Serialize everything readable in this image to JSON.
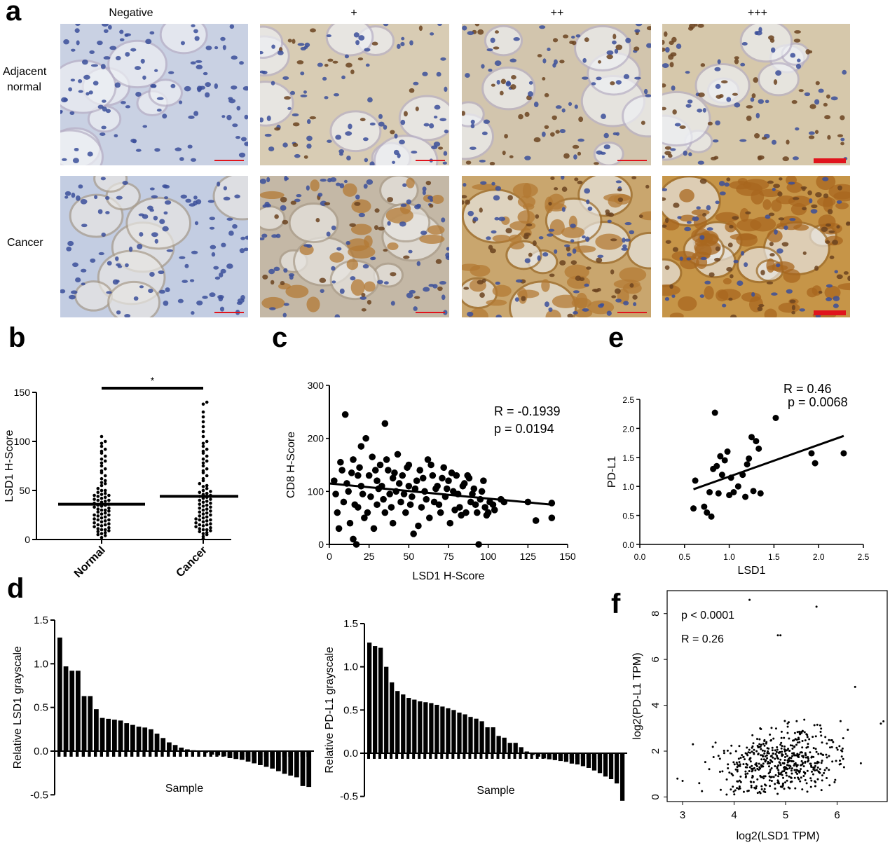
{
  "panel_a": {
    "letter": "a",
    "columns": [
      "Negative",
      "+",
      "++",
      "+++"
    ],
    "rows": [
      {
        "line1": "Adjacent",
        "line2": "normal"
      },
      {
        "line1": "Cancer",
        "line2": ""
      }
    ],
    "tile_tints": [
      [
        "#c9d1e3",
        "#d8ccb4",
        "#d2c5ad",
        "#d6c8ab"
      ],
      [
        "#c3cde2",
        "#c4b8a6",
        "#c9a66e",
        "#c69548"
      ]
    ],
    "nuclei_color": "#3b4f9a",
    "brown_nuclei_color": "#6b4320",
    "scale_bar_color": "#e0141c"
  },
  "panel_b": {
    "letter": "b",
    "ylabel": "LSD1 H-Score",
    "significance": "*"
  },
  "panel_c": {
    "letter": "c",
    "stat_R": "R = -0.1939",
    "stat_p": "p = 0.0194"
  },
  "panel_d": {
    "letter": "d"
  },
  "panel_e": {
    "letter": "e",
    "stat_R": "R = 0.46",
    "stat_p": "p = 0.0068"
  },
  "panel_f": {
    "letter": "f",
    "stat_p": "p < 0.0001",
    "stat_R": "R = 0.26"
  },
  "chart_data": [
    {
      "id": "b",
      "type": "scatter",
      "subtype": "dot-plot",
      "categories": [
        "Normal",
        "Cancer"
      ],
      "ylabel": "LSD1 H-Score",
      "ylim": [
        0,
        150
      ],
      "yticks": [
        0,
        50,
        100,
        150
      ],
      "means": [
        36,
        44
      ],
      "series": [
        {
          "name": "Normal",
          "values": [
            2,
            4,
            5,
            6,
            7,
            8,
            9,
            10,
            10,
            11,
            12,
            13,
            14,
            15,
            15,
            16,
            17,
            18,
            19,
            20,
            20,
            21,
            22,
            23,
            24,
            25,
            25,
            26,
            27,
            28,
            29,
            30,
            30,
            31,
            32,
            33,
            34,
            35,
            35,
            36,
            37,
            38,
            39,
            40,
            40,
            41,
            42,
            43,
            44,
            45,
            45,
            46,
            47,
            48,
            50,
            50,
            52,
            55,
            57,
            58,
            60,
            62,
            65,
            68,
            70,
            72,
            75,
            78,
            80,
            82,
            85,
            88,
            90,
            92,
            95,
            98,
            100,
            105
          ]
        },
        {
          "name": "Cancer",
          "values": [
            1,
            3,
            5,
            6,
            7,
            8,
            9,
            10,
            10,
            11,
            12,
            13,
            14,
            15,
            15,
            16,
            17,
            18,
            19,
            20,
            20,
            21,
            22,
            23,
            24,
            25,
            26,
            27,
            28,
            29,
            30,
            31,
            32,
            33,
            34,
            35,
            36,
            37,
            38,
            39,
            40,
            41,
            42,
            43,
            44,
            45,
            46,
            47,
            48,
            49,
            50,
            52,
            54,
            55,
            57,
            60,
            62,
            65,
            68,
            70,
            72,
            75,
            78,
            80,
            82,
            85,
            88,
            90,
            92,
            95,
            98,
            100,
            105,
            110,
            115,
            120,
            125,
            130,
            138,
            140
          ]
        }
      ],
      "significance": "*"
    },
    {
      "id": "c",
      "type": "scatter",
      "xlabel": "LSD1 H-Score",
      "ylabel": "CD8 H-Score",
      "xlim": [
        0,
        150
      ],
      "ylim": [
        0,
        300
      ],
      "xticks": [
        0,
        25,
        50,
        75,
        100,
        125,
        150
      ],
      "yticks": [
        0,
        100,
        200,
        300
      ],
      "points": [
        [
          3,
          120
        ],
        [
          5,
          60
        ],
        [
          8,
          140
        ],
        [
          9,
          80
        ],
        [
          10,
          245
        ],
        [
          12,
          100
        ],
        [
          13,
          40
        ],
        [
          15,
          160
        ],
        [
          15,
          10
        ],
        [
          17,
          0
        ],
        [
          18,
          130
        ],
        [
          18,
          70
        ],
        [
          20,
          185
        ],
        [
          20,
          110
        ],
        [
          22,
          50
        ],
        [
          23,
          200
        ],
        [
          25,
          130
        ],
        [
          26,
          90
        ],
        [
          27,
          165
        ],
        [
          28,
          30
        ],
        [
          30,
          120
        ],
        [
          30,
          75
        ],
        [
          32,
          150
        ],
        [
          33,
          110
        ],
        [
          35,
          228
        ],
        [
          35,
          60
        ],
        [
          37,
          140
        ],
        [
          38,
          95
        ],
        [
          40,
          125
        ],
        [
          40,
          40
        ],
        [
          42,
          100
        ],
        [
          43,
          170
        ],
        [
          45,
          80
        ],
        [
          46,
          130
        ],
        [
          48,
          60
        ],
        [
          50,
          110
        ],
        [
          50,
          150
        ],
        [
          52,
          90
        ],
        [
          53,
          20
        ],
        [
          55,
          120
        ],
        [
          57,
          140
        ],
        [
          58,
          70
        ],
        [
          60,
          100
        ],
        [
          62,
          160
        ],
        [
          63,
          50
        ],
        [
          65,
          130
        ],
        [
          66,
          80
        ],
        [
          68,
          110
        ],
        [
          70,
          60
        ],
        [
          72,
          145
        ],
        [
          73,
          90
        ],
        [
          75,
          120
        ],
        [
          76,
          40
        ],
        [
          78,
          100
        ],
        [
          80,
          130
        ],
        [
          82,
          70
        ],
        [
          84,
          110
        ],
        [
          86,
          60
        ],
        [
          88,
          125
        ],
        [
          90,
          95
        ],
        [
          92,
          75
        ],
        [
          94,
          0
        ],
        [
          95,
          85
        ],
        [
          98,
          70
        ],
        [
          100,
          60
        ],
        [
          103,
          75
        ],
        [
          110,
          80
        ],
        [
          125,
          80
        ],
        [
          130,
          45
        ],
        [
          140,
          78
        ],
        [
          140,
          50
        ],
        [
          4,
          95
        ],
        [
          6,
          30
        ],
        [
          7,
          155
        ],
        [
          11,
          115
        ],
        [
          14,
          135
        ],
        [
          16,
          75
        ],
        [
          19,
          145
        ],
        [
          21,
          95
        ],
        [
          24,
          60
        ],
        [
          29,
          140
        ],
        [
          31,
          105
        ],
        [
          34,
          85
        ],
        [
          36,
          160
        ],
        [
          39,
          70
        ],
        [
          41,
          135
        ],
        [
          44,
          115
        ],
        [
          47,
          95
        ],
        [
          49,
          145
        ],
        [
          51,
          75
        ],
        [
          54,
          105
        ],
        [
          56,
          35
        ],
        [
          59,
          125
        ],
        [
          61,
          85
        ],
        [
          64,
          150
        ],
        [
          67,
          105
        ],
        [
          69,
          75
        ],
        [
          71,
          125
        ],
        [
          74,
          105
        ],
        [
          77,
          135
        ],
        [
          79,
          65
        ],
        [
          81,
          95
        ],
        [
          83,
          55
        ],
        [
          85,
          115
        ],
        [
          87,
          130
        ],
        [
          89,
          80
        ],
        [
          91,
          105
        ],
        [
          93,
          60
        ],
        [
          96,
          100
        ],
        [
          97,
          120
        ],
        [
          99,
          55
        ],
        [
          101,
          80
        ],
        [
          104,
          65
        ],
        [
          108,
          85
        ]
      ],
      "fit_line": [
        [
          0,
          115
        ],
        [
          140,
          75
        ]
      ],
      "stats": [
        "R = -0.1939",
        "p = 0.0194"
      ]
    },
    {
      "id": "d1",
      "type": "bar",
      "xlabel": "Sample",
      "ylabel": "Relative  LSD1 grayscale",
      "ylim": [
        -0.5,
        1.5
      ],
      "yticks": [
        -0.5,
        0.0,
        0.5,
        1.0,
        1.5
      ],
      "values": [
        1.3,
        0.97,
        0.92,
        0.92,
        0.63,
        0.63,
        0.48,
        0.38,
        0.37,
        0.36,
        0.35,
        0.32,
        0.3,
        0.28,
        0.27,
        0.25,
        0.2,
        0.15,
        0.1,
        0.07,
        0.04,
        0.02,
        0.01,
        0.0,
        -0.02,
        -0.04,
        -0.05,
        -0.06,
        -0.08,
        -0.09,
        -0.1,
        -0.12,
        -0.14,
        -0.16,
        -0.18,
        -0.2,
        -0.23,
        -0.26,
        -0.28,
        -0.3,
        -0.4,
        -0.41
      ]
    },
    {
      "id": "d2",
      "type": "bar",
      "xlabel": "Sample",
      "ylabel": "Relative  PD-L1 grayscale",
      "ylim": [
        -0.5,
        1.5
      ],
      "yticks": [
        -0.5,
        0.0,
        0.5,
        1.0,
        1.5
      ],
      "values": [
        1.28,
        1.24,
        1.22,
        1.0,
        0.82,
        0.72,
        0.68,
        0.64,
        0.62,
        0.6,
        0.59,
        0.58,
        0.56,
        0.54,
        0.52,
        0.5,
        0.47,
        0.45,
        0.42,
        0.4,
        0.37,
        0.3,
        0.3,
        0.2,
        0.18,
        0.12,
        0.12,
        0.07,
        0.02,
        -0.02,
        -0.04,
        -0.06,
        -0.07,
        -0.08,
        -0.09,
        -0.1,
        -0.12,
        -0.13,
        -0.15,
        -0.17,
        -0.2,
        -0.23,
        -0.27,
        -0.3,
        -0.35,
        -0.55
      ]
    },
    {
      "id": "e",
      "type": "scatter",
      "xlabel": "LSD1",
      "ylabel": "PD-L1",
      "xlim": [
        0.0,
        2.5
      ],
      "ylim": [
        0.0,
        2.5
      ],
      "xticks": [
        0.0,
        0.5,
        1.0,
        1.5,
        2.0,
        2.5
      ],
      "yticks": [
        0.0,
        0.5,
        1.0,
        1.5,
        2.0,
        2.5
      ],
      "points": [
        [
          0.6,
          0.62
        ],
        [
          0.62,
          1.1
        ],
        [
          0.72,
          0.65
        ],
        [
          0.75,
          0.55
        ],
        [
          0.78,
          0.9
        ],
        [
          0.8,
          0.48
        ],
        [
          0.82,
          1.3
        ],
        [
          0.84,
          2.27
        ],
        [
          0.86,
          1.35
        ],
        [
          0.88,
          0.88
        ],
        [
          0.9,
          1.52
        ],
        [
          0.92,
          1.2
        ],
        [
          0.95,
          1.45
        ],
        [
          0.98,
          1.6
        ],
        [
          1.0,
          0.85
        ],
        [
          1.02,
          1.15
        ],
        [
          1.05,
          0.9
        ],
        [
          1.1,
          1.0
        ],
        [
          1.15,
          1.2
        ],
        [
          1.18,
          0.82
        ],
        [
          1.2,
          1.38
        ],
        [
          1.22,
          1.48
        ],
        [
          1.25,
          1.85
        ],
        [
          1.27,
          0.92
        ],
        [
          1.3,
          1.78
        ],
        [
          1.33,
          1.65
        ],
        [
          1.35,
          0.88
        ],
        [
          1.52,
          2.18
        ],
        [
          1.92,
          1.57
        ],
        [
          1.96,
          1.4
        ],
        [
          2.28,
          1.57
        ]
      ],
      "fit_line": [
        [
          0.6,
          0.95
        ],
        [
          2.28,
          1.87
        ]
      ],
      "stats": [
        "R = 0.46",
        "p = 0.0068"
      ]
    },
    {
      "id": "f",
      "type": "scatter",
      "xlabel": "log2(LSD1 TPM)",
      "ylabel": "log2(PD-L1 TPM)",
      "xlim": [
        2.7,
        7.0
      ],
      "ylim": [
        -0.2,
        9.0
      ],
      "xticks": [
        3,
        4,
        5,
        6
      ],
      "yticks": [
        0,
        2,
        4,
        6,
        8
      ],
      "stats": [
        "p < 0.0001",
        "R = 0.26"
      ],
      "outliers": [
        [
          4.3,
          8.6
        ],
        [
          5.6,
          8.3
        ],
        [
          4.85,
          7.05
        ],
        [
          4.9,
          7.05
        ],
        [
          6.35,
          4.8
        ],
        [
          6.9,
          3.3
        ],
        [
          6.85,
          3.2
        ],
        [
          3.2,
          2.3
        ],
        [
          2.9,
          0.8
        ],
        [
          3.0,
          0.7
        ]
      ]
    }
  ]
}
